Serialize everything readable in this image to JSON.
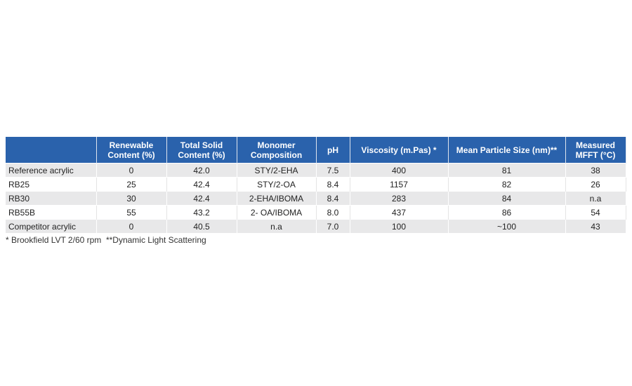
{
  "table": {
    "header": [
      "",
      "Renewable Content (%)",
      "Total Solid Content (%)",
      "Monomer Composition",
      "pH",
      "Viscosity (m.Pas) *",
      "Mean Particle Size (nm)**",
      "Measured MFFT (°C)"
    ],
    "rows": [
      [
        "Reference acrylic",
        "0",
        "42.0",
        "STY/2-EHA",
        "7.5",
        "400",
        "81",
        "38"
      ],
      [
        "RB25",
        "25",
        "42.4",
        "STY/2-OA",
        "8.4",
        "1157",
        "82",
        "26"
      ],
      [
        "RB30",
        "30",
        "42.4",
        "2-EHA/IBOMA",
        "8.4",
        "283",
        "84",
        "n.a"
      ],
      [
        "RB55B",
        "55",
        "43.2",
        "2- OA/IBOMA",
        "8.0",
        "437",
        "86",
        "54"
      ],
      [
        "Competitor acrylic",
        "0",
        "40.5",
        "n.a",
        "7.0",
        "100",
        "~100",
        "43"
      ]
    ],
    "footnote": "* Brookfield LVT 2/60 rpm  **Dynamic Light Scattering"
  }
}
